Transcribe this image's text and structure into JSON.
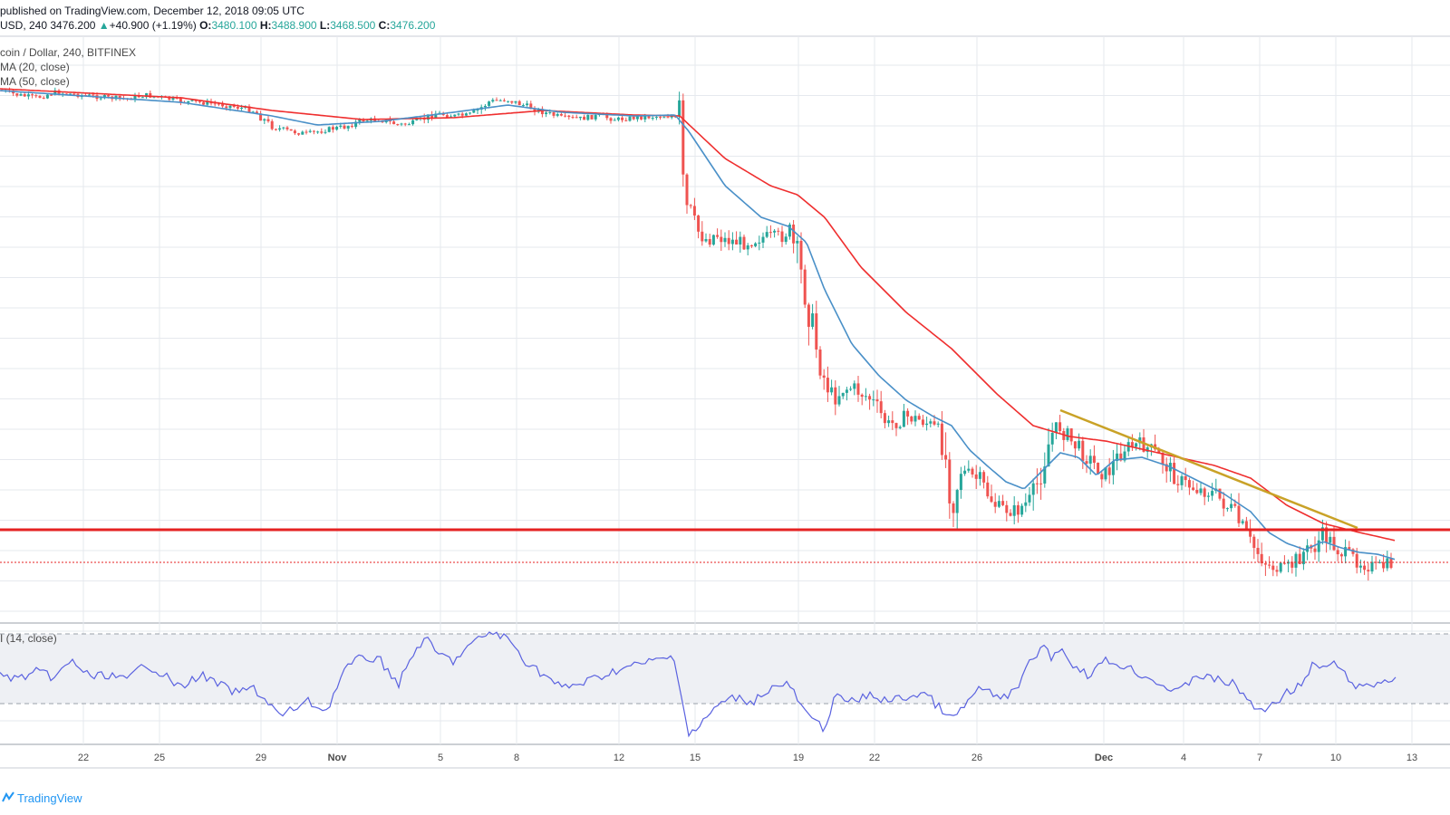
{
  "header": {
    "published": "published on TradingView.com, December 12, 2018 09:05 UTC",
    "symbol": "USD, 240",
    "last": "3476.200",
    "change_arrow": "▲",
    "change": "+40.900 (+1.19%)",
    "o_label": "O:",
    "o_value": "3480.100",
    "h_label": "H:",
    "h_value": "3488.900",
    "l_label": "L:",
    "l_value": "3468.500",
    "c_label": "C:",
    "c_value": "3476.200"
  },
  "legend": {
    "title": "coin / Dollar, 240, BITFINEX",
    "ma20": "MA (20, close)",
    "ma50": "MA (50, close)",
    "rsi": "I (14, close)"
  },
  "brand": "TradingView",
  "colors": {
    "up": "#26a69a",
    "down": "#ef5350",
    "ma20": "#4a90c8",
    "ma50": "#ef2f2f",
    "support": "#e52222",
    "trendline": "#c9a227",
    "rsi": "#5a62e0",
    "grid": "#e6e9ee"
  },
  "chart_data": {
    "type": "line",
    "title": "coin / Dollar, 240, BITFINEX",
    "x_tick_labels": [
      "22",
      "25",
      "29",
      "Nov",
      "5",
      "8",
      "12",
      "15",
      "19",
      "22",
      "26",
      "Dec",
      "4",
      "7",
      "10",
      "13"
    ],
    "price_anchors": {
      "x": [
        0,
        20,
        40,
        60,
        80,
        100,
        120,
        140,
        160,
        180,
        200,
        220,
        240,
        260,
        280,
        300,
        320,
        340,
        360,
        380,
        400,
        420,
        440,
        460,
        480,
        500,
        520,
        540,
        560,
        580,
        600,
        620,
        640,
        660,
        680,
        700,
        720,
        740,
        750,
        755,
        760,
        765,
        770,
        780,
        790,
        800,
        820,
        840,
        860,
        870,
        880,
        890,
        900,
        910,
        920,
        930,
        940,
        960,
        980,
        1000,
        1020,
        1040,
        1050,
        1060,
        1080,
        1100,
        1120,
        1140,
        1160,
        1170,
        1180,
        1200,
        1220,
        1240,
        1260,
        1280,
        1300,
        1320,
        1340,
        1360,
        1380,
        1400,
        1420,
        1440,
        1450,
        1460,
        1480,
        1500,
        1520,
        1540
      ],
      "y": [
        100,
        105,
        108,
        102,
        104,
        106,
        108,
        109,
        105,
        108,
        112,
        113,
        115,
        118,
        122,
        140,
        145,
        148,
        143,
        140,
        133,
        132,
        138,
        135,
        125,
        128,
        127,
        112,
        110,
        117,
        124,
        130,
        131,
        128,
        132,
        130,
        129,
        128,
        135,
        230,
        230,
        245,
        255,
        265,
        258,
        265,
        268,
        262,
        262,
        255,
        285,
        330,
        380,
        420,
        440,
        430,
        428,
        440,
        470,
        460,
        465,
        480,
        560,
        520,
        530,
        560,
        565,
        550,
        480,
        470,
        485,
        505,
        525,
        495,
        490,
        505,
        530,
        540,
        545,
        565,
        600,
        625,
        630,
        608,
        605,
        590,
        610,
        620,
        628,
        621
      ]
    },
    "ma20_anchors": {
      "x": [
        0,
        200,
        300,
        350,
        420,
        500,
        560,
        620,
        700,
        745,
        760,
        800,
        840,
        870,
        890,
        910,
        940,
        970,
        1000,
        1030,
        1050,
        1070,
        1090,
        1110,
        1130,
        1150,
        1170,
        1190,
        1210,
        1230,
        1260,
        1290,
        1320,
        1350,
        1380,
        1400,
        1420,
        1440,
        1460,
        1480,
        1500,
        1520,
        1540
      ],
      "y": [
        100,
        113,
        128,
        138,
        134,
        124,
        116,
        124,
        128,
        127,
        145,
        205,
        240,
        250,
        268,
        320,
        380,
        415,
        442,
        460,
        470,
        497,
        515,
        532,
        540,
        520,
        500,
        505,
        525,
        508,
        505,
        515,
        530,
        545,
        565,
        588,
        600,
        607,
        598,
        605,
        610,
        612,
        618
      ]
    },
    "ma50_anchors": {
      "x": [
        0,
        200,
        300,
        400,
        500,
        600,
        700,
        750,
        800,
        850,
        880,
        910,
        950,
        1000,
        1050,
        1100,
        1140,
        1180,
        1220,
        1260,
        1300,
        1340,
        1380,
        1420,
        1460,
        1500,
        1540
      ],
      "y": [
        98,
        108,
        122,
        132,
        130,
        122,
        127,
        128,
        175,
        205,
        215,
        240,
        295,
        345,
        385,
        435,
        470,
        482,
        487,
        496,
        505,
        514,
        528,
        558,
        578,
        588,
        597
      ]
    },
    "support_level_y": 585,
    "current_price_y": 621,
    "trendline": {
      "x": [
        1170,
        1498
      ],
      "y": [
        453,
        583
      ]
    },
    "rsi_anchors": {
      "x": [
        0,
        20,
        40,
        60,
        80,
        100,
        120,
        140,
        160,
        180,
        200,
        220,
        240,
        260,
        280,
        300,
        310,
        320,
        340,
        360,
        380,
        400,
        420,
        440,
        460,
        470,
        480,
        500,
        520,
        540,
        560,
        580,
        600,
        620,
        640,
        660,
        680,
        700,
        720,
        745,
        750,
        760,
        770,
        790,
        810,
        830,
        850,
        870,
        890,
        910,
        920,
        940,
        960,
        980,
        1000,
        1020,
        1040,
        1050,
        1060,
        1080,
        1100,
        1120,
        1140,
        1150,
        1160,
        1170,
        1180,
        1200,
        1220,
        1240,
        1260,
        1280,
        1300,
        1320,
        1340,
        1360,
        1380,
        1390,
        1400,
        1420,
        1440,
        1450,
        1460,
        1470,
        1480,
        1500,
        1520,
        1540
      ],
      "y": [
        745,
        750,
        742,
        748,
        730,
        748,
        745,
        752,
        732,
        745,
        760,
        745,
        755,
        765,
        760,
        780,
        792,
        785,
        775,
        785,
        740,
        725,
        730,
        755,
        715,
        705,
        720,
        730,
        712,
        698,
        705,
        730,
        745,
        760,
        755,
        748,
        740,
        735,
        730,
        725,
        760,
        810,
        805,
        780,
        770,
        775,
        760,
        755,
        790,
        805,
        770,
        775,
        768,
        774,
        770,
        765,
        785,
        795,
        785,
        760,
        770,
        765,
        725,
        715,
        725,
        715,
        730,
        745,
        730,
        735,
        745,
        755,
        765,
        745,
        750,
        755,
        775,
        788,
        780,
        765,
        752,
        732,
        740,
        730,
        742,
        760,
        755,
        748
      ]
    },
    "rsi_levels": {
      "upper_y": 700,
      "lower_y": 777,
      "mid_y": 738.5
    },
    "ylim_pixels_note": ""
  }
}
